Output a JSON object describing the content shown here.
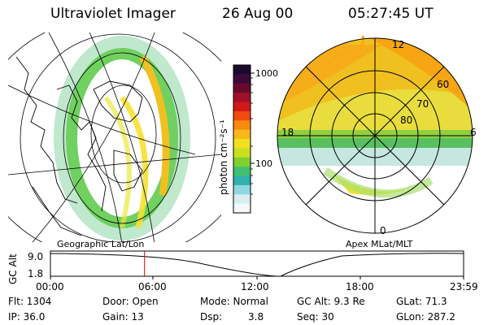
{
  "header": {
    "instrument": "Ultraviolet Imager",
    "date": "26 Aug 00",
    "time": "05:27:45 UT"
  },
  "colorbar": {
    "unit_label": "photon cm⁻²s⁻¹",
    "tick_1000": "1000",
    "tick_100": "100",
    "colors_top_to_bottom": [
      "#1a0a2e",
      "#3a0a3a",
      "#6a0a2a",
      "#a0102a",
      "#d01818",
      "#f04a10",
      "#f88a10",
      "#f8b818",
      "#f0e020",
      "#c8e020",
      "#80d030",
      "#40c070",
      "#30b0b0",
      "#90d8e0",
      "#d8eef0",
      "#f4f8f8"
    ]
  },
  "geo_panel": {
    "label": "Geographic Lat/Lon"
  },
  "polar_panel": {
    "label": "Apex MLat/MLT",
    "ring_labels": [
      "60",
      "70",
      "80"
    ],
    "mlt_labels": {
      "top": "12",
      "left": "18",
      "right": "6",
      "bottom": "0"
    }
  },
  "altitude_plot": {
    "ylabel": "GC Alt",
    "y_ticks": [
      "9.0",
      "1.8"
    ],
    "x_ticks": [
      "00:00",
      "06:00",
      "12:00",
      "18:00",
      "23:59"
    ],
    "current_time_marker": "05:27:45",
    "marker_color": "#e00000"
  },
  "footer": {
    "flt": "Flt: 1304",
    "ip": "IP: 36.0",
    "door": "Door: Open",
    "gain": "Gain: 13",
    "mode": "Mode: Normal",
    "dsp_label": "Dsp:",
    "dsp_value": "3.8",
    "gc_alt": "GC Alt: 9.3 Re",
    "seq": "Seq: 30",
    "glat": "GLat: 71.3",
    "glon": "GLon: 287.2"
  }
}
